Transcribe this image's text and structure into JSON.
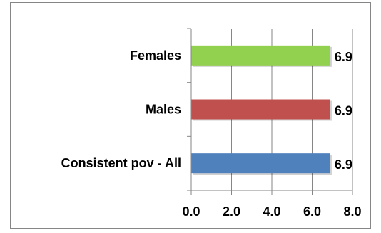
{
  "chart_data": {
    "type": "bar",
    "orientation": "horizontal",
    "categories": [
      "Females",
      "Males",
      "Consistent pov - All"
    ],
    "values": [
      6.9,
      6.9,
      6.9
    ],
    "value_labels": [
      "6.9",
      "6.9",
      "6.9"
    ],
    "colors": [
      "#92d050",
      "#c0504d",
      "#4f81bd"
    ],
    "xlim": [
      0,
      8
    ],
    "x_ticks": [
      0,
      2,
      4,
      6,
      8
    ],
    "x_tick_labels": [
      "0.0",
      "2.0",
      "4.0",
      "6.0",
      "8.0"
    ],
    "grid": "vertical",
    "legend": "none"
  }
}
